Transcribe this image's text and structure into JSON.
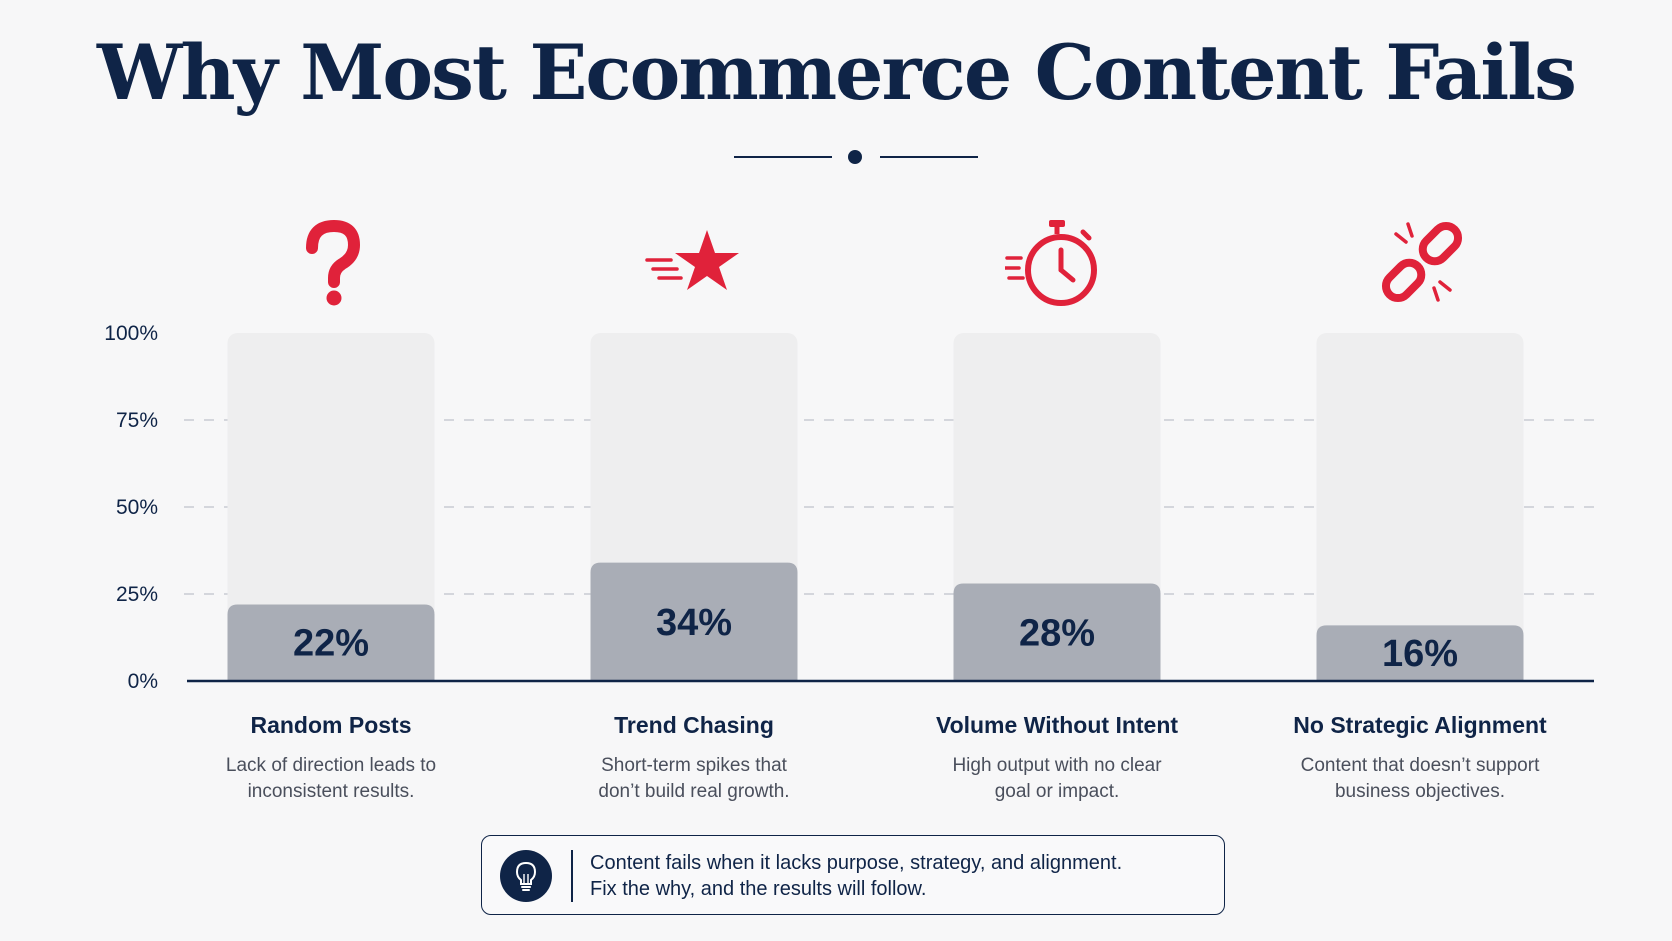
{
  "title": "Why Most Ecommerce Content Fails",
  "colors": {
    "navy": "#0f2447",
    "accent_red": "#e0223a",
    "bar_fill": "#a9adb6",
    "bar_track": "#eeeeef"
  },
  "chart_data": {
    "type": "bar",
    "categories": [
      "Random Posts",
      "Trend Chasing",
      "Volume Without Intent",
      "No Strategic Alignment"
    ],
    "values": [
      22,
      34,
      28,
      16
    ],
    "value_labels": [
      "22%",
      "34%",
      "28%",
      "16%"
    ],
    "descriptions": [
      [
        "Lack of direction leads to",
        "inconsistent results."
      ],
      [
        "Short-term spikes that",
        "don’t build real growth."
      ],
      [
        "High output with no clear",
        "goal or impact."
      ],
      [
        "Content that doesn’t support",
        "business objectives."
      ]
    ],
    "icons": [
      "question-mark-icon",
      "shooting-star-icon",
      "stopwatch-icon",
      "broken-link-icon"
    ],
    "y_ticks": [
      "100%",
      "75%",
      "50%",
      "25%",
      "0%"
    ],
    "y_tick_values": [
      100,
      75,
      50,
      25,
      0
    ],
    "ylim": [
      0,
      100
    ],
    "xlabel": "",
    "ylabel": "",
    "grid": "dashed"
  },
  "callout": {
    "icon": "lightbulb-icon",
    "line1": "Content fails when it lacks purpose, strategy, and alignment.",
    "line2": "Fix the why, and the results will follow."
  }
}
